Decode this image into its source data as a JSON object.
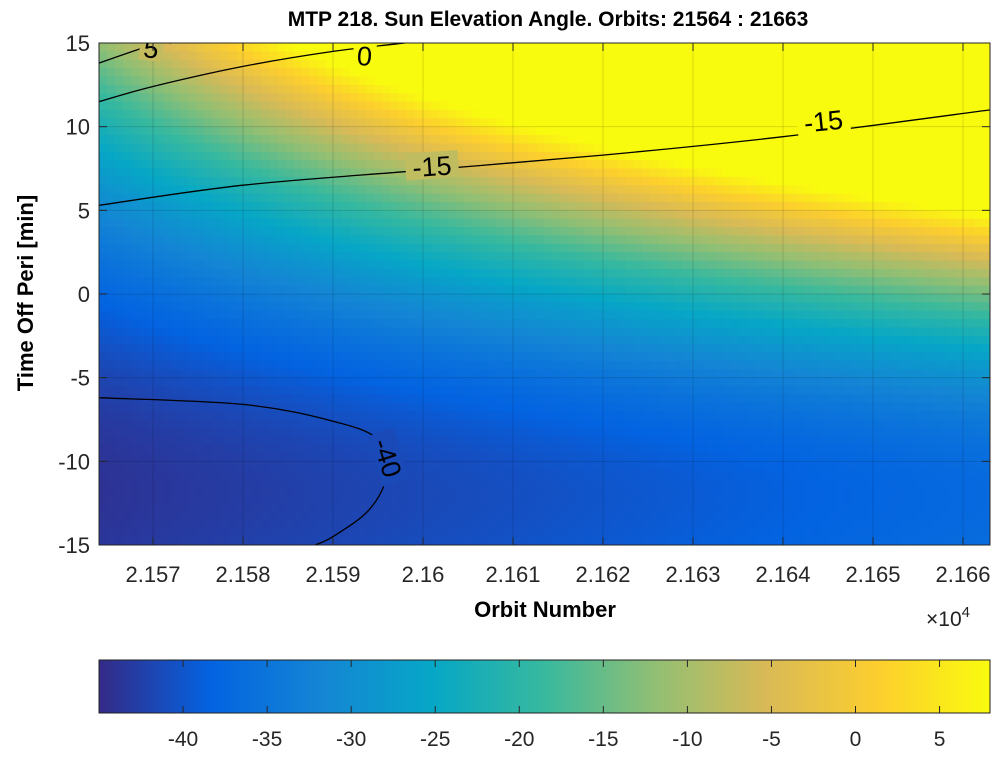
{
  "chart_data": {
    "type": "heatmap",
    "title": "MTP 218. Sun Elevation Angle. Orbits: 21564 : 21663",
    "xlabel": "Orbit Number",
    "ylabel": "Time Off Peri [min]",
    "x_multiplier_label": "×10",
    "x_multiplier_exponent": "4",
    "xlim": [
      2.1564,
      2.1663
    ],
    "ylim": [
      -15,
      15
    ],
    "x_ticks": [
      2.157,
      2.158,
      2.159,
      2.16,
      2.161,
      2.162,
      2.163,
      2.164,
      2.165,
      2.166
    ],
    "x_tick_labels": [
      "2.157",
      "2.158",
      "2.159",
      "2.16",
      "2.161",
      "2.162",
      "2.163",
      "2.164",
      "2.165",
      "2.166"
    ],
    "y_ticks": [
      15,
      10,
      5,
      0,
      -5,
      -10,
      -15
    ],
    "y_tick_labels": [
      "15",
      "10",
      "5",
      "0",
      "-5",
      "-10",
      "-15"
    ],
    "grid": true,
    "colormap": "parula",
    "colormap_stops": [
      "#352a87",
      "#0363e1",
      "#1485d4",
      "#06a7c6",
      "#38b99e",
      "#92bf73",
      "#d9ba56",
      "#fcce2e",
      "#f9fb0e"
    ],
    "colorbar": {
      "position": "bottom",
      "range": [
        -45,
        8
      ],
      "ticks": [
        -40,
        -35,
        -30,
        -25,
        -20,
        -15,
        -10,
        -5,
        0,
        5
      ],
      "tick_labels": [
        "-40",
        "-35",
        "-30",
        "-25",
        "-20",
        "-15",
        "-10",
        "-5",
        "0",
        "5"
      ]
    },
    "contour_lines": [
      {
        "level": 5,
        "label": "5",
        "points": [
          [
            2.1564,
            13.8
          ],
          [
            2.157,
            14.9
          ],
          [
            2.1572,
            15.0
          ]
        ]
      },
      {
        "level": 0,
        "label": "0",
        "points": [
          [
            2.1564,
            11.5
          ],
          [
            2.157,
            12.4
          ],
          [
            2.158,
            13.6
          ],
          [
            2.159,
            14.5
          ],
          [
            2.1598,
            15.0
          ]
        ]
      },
      {
        "level": -15,
        "label": "-15",
        "points": [
          [
            2.1564,
            5.3
          ],
          [
            2.158,
            6.5
          ],
          [
            2.16,
            7.4
          ],
          [
            2.162,
            8.3
          ],
          [
            2.164,
            9.4
          ],
          [
            2.1663,
            11.0
          ]
        ]
      },
      {
        "level": -40,
        "label": "-40",
        "points": [
          [
            2.1564,
            -6.2
          ],
          [
            2.158,
            -6.6
          ],
          [
            2.159,
            -7.6
          ],
          [
            2.1595,
            -8.7
          ],
          [
            2.1596,
            -10.8
          ],
          [
            2.1594,
            -12.9
          ],
          [
            2.159,
            -14.5
          ],
          [
            2.1588,
            -15.0
          ]
        ]
      }
    ],
    "contour_label_values": [
      "5",
      "0",
      "-15",
      "-15",
      "-40"
    ]
  }
}
